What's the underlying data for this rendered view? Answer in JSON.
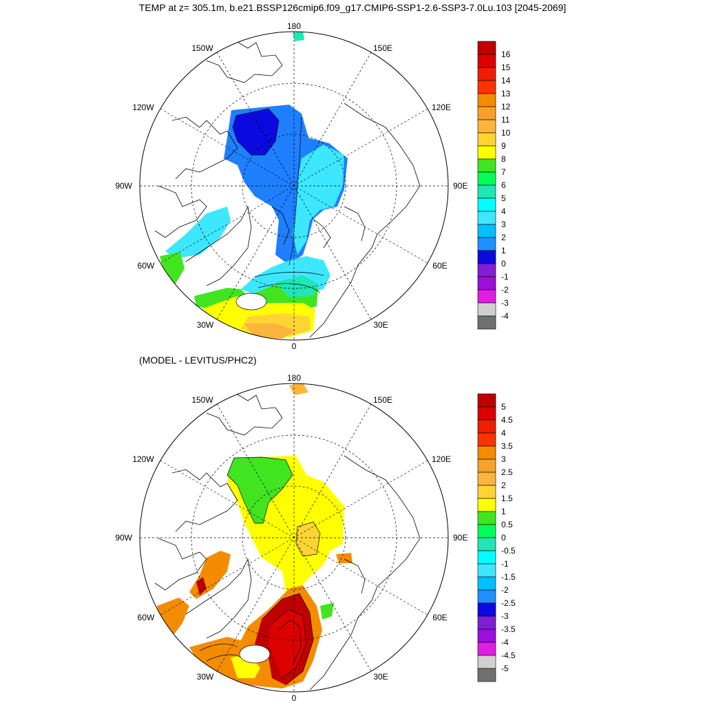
{
  "title": "TEMP at z= 305.1m, b.e21.BSSP126cmip6.f09_g17.CMIP6-SSP1-2.6-SSP3-7.0Lu.103 [2045-2069]",
  "subtitle": "(MODEL - LEVITUS/PHC2)",
  "lon_labels": [
    "180",
    "150E",
    "120E",
    "90E",
    "60E",
    "30E",
    "0",
    "30W",
    "60W",
    "90W",
    "120W",
    "150W"
  ],
  "panels": [
    {
      "id": "top",
      "colorbar": {
        "labels": [
          "16",
          "15",
          "14",
          "13",
          "12",
          "11",
          "10",
          "9",
          "8",
          "7",
          "6",
          "5",
          "4",
          "3",
          "2",
          "1",
          "0",
          "-1",
          "-2",
          "-3",
          "-4"
        ],
        "colors": [
          "#c00000",
          "#dd0000",
          "#ee1e00",
          "#fd3300",
          "#f48c00",
          "#f7a02a",
          "#fbb43c",
          "#fdd434",
          "#ffff00",
          "#41e51f",
          "#00ff59",
          "#1ee6b4",
          "#00ffff",
          "#3ce7ff",
          "#00c0ff",
          "#1e90ff",
          "#0a0ae0",
          "#7f1ed4",
          "#9b0fd9",
          "#e01de0",
          "#d0d0d0",
          "#707070"
        ]
      }
    },
    {
      "id": "bottom",
      "colorbar": {
        "labels": [
          "5",
          "4.5",
          "4",
          "3.5",
          "3",
          "2.5",
          "2",
          "1.5",
          "1",
          "0.5",
          "0",
          "-0.5",
          "-1",
          "-1.5",
          "-2",
          "-2.5",
          "-3",
          "-3.5",
          "-4",
          "-4.5",
          "-5"
        ],
        "colors": [
          "#c00000",
          "#dd0000",
          "#ee1e00",
          "#fd3300",
          "#f48c00",
          "#f7a02a",
          "#fbb43c",
          "#fdd434",
          "#ffff00",
          "#41e51f",
          "#00ff59",
          "#1ee6b4",
          "#00ffff",
          "#3ce7ff",
          "#00c0ff",
          "#1e90ff",
          "#0a0ae0",
          "#7f1ed4",
          "#9b0fd9",
          "#e01de0",
          "#d0d0d0",
          "#707070"
        ]
      }
    }
  ]
}
